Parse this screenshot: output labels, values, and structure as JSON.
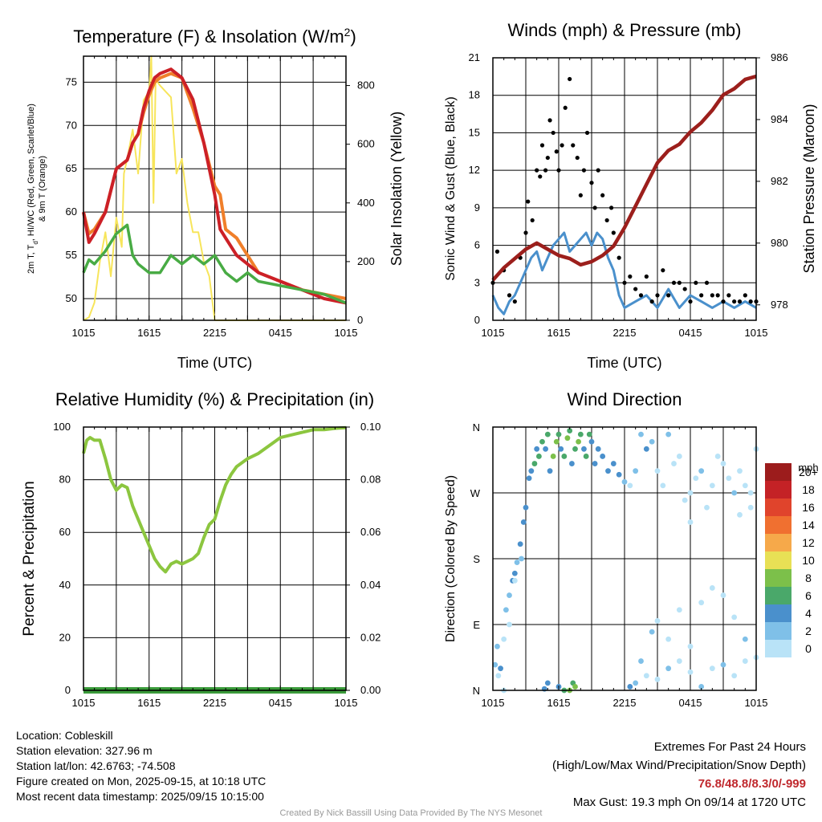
{
  "chart_data": [
    {
      "type": "line",
      "title": "Temperature (F) & Insolation (W/m",
      "title_sup": "2",
      "title_end": ")",
      "xlabel": "Time (UTC)",
      "ylabel_left": [
        "2m T, T",
        "d",
        ", HI/WC (Red, Green, Scarlet/Blue)",
        "& 9m T (Orange)"
      ],
      "ylabel_right": "Solar Insolation (Yellow)",
      "x_ticks": [
        "1015",
        "1615",
        "2215",
        "0415",
        "1015"
      ],
      "x_range_hours": [
        0,
        24
      ],
      "ylim_left": [
        47.5,
        78
      ],
      "yticks_left": [
        50,
        55,
        60,
        65,
        70,
        75
      ],
      "ylim_right": [
        0,
        900
      ],
      "yticks_right": [
        0,
        200,
        400,
        600,
        800
      ],
      "grid": true,
      "series": [
        {
          "color": "#f07f2a",
          "x": [
            0,
            0.5,
            1,
            2,
            3,
            4,
            4.5,
            5,
            5.5,
            6,
            6.5,
            7,
            8,
            9,
            10,
            11,
            12,
            12.5,
            13,
            14,
            15,
            16,
            18,
            20,
            22,
            24
          ],
          "y": [
            60,
            57.5,
            58,
            60,
            65,
            66,
            68,
            69,
            71.5,
            73.5,
            75,
            75.5,
            76,
            75.5,
            72,
            68,
            63,
            62,
            58,
            57,
            55,
            53,
            52,
            51,
            50.5,
            50
          ]
        },
        {
          "color": "#cc2027",
          "x": [
            0,
            0.5,
            1,
            2,
            3,
            4,
            4.5,
            5,
            5.5,
            6,
            6.5,
            7,
            8,
            9,
            10,
            11,
            12,
            12.5,
            13,
            14,
            15,
            16,
            18,
            20,
            22,
            24
          ],
          "y": [
            60,
            56.5,
            57.5,
            60,
            65,
            66,
            68,
            69,
            72,
            74,
            75.5,
            76,
            76.5,
            75.5,
            73,
            68,
            62,
            58,
            57,
            55,
            54,
            53,
            52,
            51,
            50,
            49.5
          ]
        },
        {
          "color": "#48ab44",
          "x": [
            0,
            0.5,
            1,
            2,
            3,
            3.5,
            4,
            4.5,
            5,
            6,
            7,
            8,
            9,
            10,
            11,
            12,
            13,
            14,
            15,
            16,
            18,
            20,
            22,
            24
          ],
          "y": [
            53,
            54.5,
            54,
            55.5,
            57.5,
            58,
            58.5,
            55,
            54,
            53,
            53,
            55,
            54,
            55,
            54,
            55,
            53,
            52,
            53,
            52,
            51.5,
            51,
            50.5,
            49.5
          ]
        }
      ],
      "insolation_series": {
        "color": "#f7e55b",
        "x": [
          0,
          0.5,
          1,
          1.5,
          2,
          2.5,
          3,
          3.5,
          3.7,
          4,
          4.5,
          5,
          5.5,
          6,
          6.2,
          6.4,
          6.6,
          7,
          7.5,
          8,
          8.5,
          9,
          9.5,
          10,
          10.5,
          11,
          11.5,
          12,
          24
        ],
        "y": [
          0,
          10,
          60,
          200,
          300,
          150,
          350,
          250,
          500,
          550,
          650,
          500,
          750,
          780,
          900,
          400,
          820,
          800,
          780,
          760,
          500,
          550,
          400,
          300,
          300,
          200,
          150,
          0,
          0
        ]
      }
    },
    {
      "type": "scatter",
      "title": "Winds (mph) & Pressure (mb)",
      "xlabel": "Time (UTC)",
      "ylabel_left": "Sonic Wind & Gust (Blue, Black)",
      "ylabel_right": "Station Pressure (Maroon)",
      "x_ticks": [
        "1015",
        "1615",
        "2215",
        "0415",
        "1015"
      ],
      "x_range_hours": [
        0,
        24
      ],
      "ylim_left": [
        0,
        21
      ],
      "yticks_left": [
        0,
        3,
        6,
        9,
        12,
        15,
        18,
        21
      ],
      "ylim_right": [
        977.5,
        986
      ],
      "yticks_right": [
        978,
        980,
        982,
        984,
        986
      ],
      "grid": true,
      "wind_series": {
        "color": "#4a90cc",
        "x": [
          0,
          0.5,
          1,
          1.5,
          2,
          2.5,
          3,
          3.5,
          4,
          4.5,
          5,
          5.5,
          6,
          6.5,
          7,
          7.5,
          8,
          8.5,
          9,
          9.5,
          10,
          10.5,
          11,
          11.5,
          12,
          13,
          14,
          15,
          16,
          17,
          18,
          19,
          20,
          21,
          22,
          23,
          24
        ],
        "y": [
          2,
          1,
          0.5,
          1.5,
          2,
          3,
          4,
          5,
          5.5,
          4,
          5,
          6,
          6.5,
          7,
          5.5,
          6,
          6.5,
          7,
          6,
          7,
          6.5,
          5,
          4,
          2,
          1,
          1.5,
          2,
          1,
          2.5,
          1,
          2,
          1.5,
          1,
          1.5,
          1,
          1.5,
          1
        ]
      },
      "gust_series": {
        "color": "#000000",
        "x": [
          0,
          0.4,
          1,
          1.5,
          2,
          2.5,
          3,
          3.2,
          3.6,
          4,
          4.3,
          4.5,
          4.8,
          5,
          5.2,
          5.5,
          5.8,
          6,
          6.3,
          6.6,
          7,
          7.3,
          7.7,
          8,
          8.3,
          8.6,
          9,
          9.3,
          9.6,
          10,
          10.4,
          10.8,
          11,
          11.5,
          12,
          12.5,
          13,
          13.5,
          14,
          14.5,
          15,
          15.5,
          16,
          16.5,
          17,
          17.5,
          18,
          18.5,
          19,
          19.5,
          20,
          20.5,
          21,
          21.5,
          22,
          22.5,
          23,
          23.5,
          24
        ],
        "y": [
          3,
          5.5,
          4,
          2,
          1.5,
          5,
          7,
          9.5,
          8,
          12,
          11.5,
          14,
          12,
          13,
          16,
          15,
          13.5,
          12,
          14,
          17,
          19.3,
          14,
          13,
          10,
          12,
          15,
          11,
          9,
          12,
          10,
          8,
          9,
          7,
          5,
          3,
          3.5,
          2.5,
          2,
          3.5,
          1.5,
          2,
          4,
          2,
          3,
          3,
          2.5,
          1.5,
          3,
          2,
          3,
          2,
          2,
          1.5,
          2,
          1.5,
          1.5,
          2,
          1.5,
          1.5
        ]
      },
      "pressure_series": {
        "color": "#9c1f1c",
        "x": [
          0,
          1,
          2,
          3,
          4,
          5,
          6,
          7,
          8,
          9,
          10,
          11,
          12,
          13,
          14,
          15,
          16,
          17,
          18,
          19,
          20,
          21,
          22,
          23,
          24
        ],
        "y": [
          978.8,
          979.2,
          979.5,
          979.8,
          980,
          979.8,
          979.6,
          979.5,
          979.3,
          979.4,
          979.6,
          979.9,
          980.5,
          981.2,
          981.9,
          982.6,
          983,
          983.2,
          983.6,
          983.9,
          984.3,
          984.8,
          985.0,
          985.3,
          985.4
        ]
      }
    },
    {
      "type": "line",
      "title": "Relative Humidity (%) & Precipitation (in)",
      "ylabel_left": "Percent & Precipitation",
      "x_ticks": [
        "1015",
        "1615",
        "2215",
        "0415",
        "1015"
      ],
      "x_range_hours": [
        0,
        24
      ],
      "ylim_left": [
        0,
        100
      ],
      "yticks_left": [
        0,
        20,
        40,
        60,
        80,
        100
      ],
      "ylim_right": [
        0,
        0.1
      ],
      "yticks_right": [
        "0.00",
        "0.02",
        "0.04",
        "0.06",
        "0.08",
        "0.10"
      ],
      "grid": true,
      "rh_series": {
        "color": "#8cc63f",
        "x": [
          0,
          0.3,
          0.6,
          1,
          1.5,
          2,
          2.5,
          3,
          3.5,
          4,
          4.5,
          5,
          5.5,
          6,
          6.5,
          7,
          7.5,
          8,
          8.5,
          9,
          9.5,
          10,
          10.5,
          11,
          11.5,
          12,
          12.5,
          13,
          13.5,
          14,
          15,
          16,
          17,
          18,
          19,
          20,
          21,
          22,
          23,
          24
        ],
        "y": [
          90,
          95,
          96,
          95,
          95,
          88,
          80,
          76,
          78,
          77,
          70,
          65,
          60,
          55,
          50,
          47,
          45,
          48,
          49,
          48,
          49,
          50,
          52,
          58,
          63,
          65,
          72,
          78,
          82,
          85,
          88,
          90,
          93,
          96,
          97,
          98,
          99,
          99,
          99.5,
          99.8
        ]
      },
      "precip_series": {
        "color": "#3a9a3a",
        "x": [
          0,
          24
        ],
        "y": [
          0,
          0
        ]
      }
    },
    {
      "type": "scatter",
      "title": "Wind Direction",
      "ylabel_left": "Direction (Colored By Speed)",
      "x_ticks": [
        "1015",
        "1615",
        "2215",
        "0415",
        "1015"
      ],
      "y_ticks": [
        "N",
        "E",
        "S",
        "W",
        "N"
      ],
      "x_range_hours": [
        0,
        24
      ],
      "ylim_degrees": [
        0,
        360
      ],
      "grid": true,
      "points": [
        [
          0.2,
          35,
          2
        ],
        [
          0.5,
          20,
          0
        ],
        [
          0.7,
          30,
          4
        ],
        [
          1,
          0,
          0
        ],
        [
          1,
          70,
          0
        ],
        [
          1.2,
          110,
          1
        ],
        [
          1.5,
          130,
          2
        ],
        [
          1.8,
          150,
          4
        ],
        [
          2,
          160,
          4
        ],
        [
          2.2,
          175,
          2
        ],
        [
          2.5,
          200,
          4
        ],
        [
          2.8,
          230,
          4
        ],
        [
          3,
          250,
          4
        ],
        [
          3.3,
          290,
          4
        ],
        [
          3.5,
          300,
          4
        ],
        [
          3.8,
          310,
          6
        ],
        [
          4,
          330,
          4
        ],
        [
          4.2,
          320,
          6
        ],
        [
          4.5,
          340,
          6
        ],
        [
          4.8,
          330,
          4
        ],
        [
          5,
          350,
          6
        ],
        [
          5.2,
          300,
          4
        ],
        [
          5.5,
          320,
          8
        ],
        [
          5.8,
          340,
          8
        ],
        [
          6,
          350,
          6
        ],
        [
          6.2,
          330,
          4
        ],
        [
          6.5,
          320,
          6
        ],
        [
          6.8,
          345,
          8
        ],
        [
          7,
          355,
          6
        ],
        [
          7.2,
          310,
          4
        ],
        [
          7.5,
          330,
          6
        ],
        [
          7.8,
          340,
          8
        ],
        [
          8,
          350,
          6
        ],
        [
          8.3,
          330,
          4
        ],
        [
          8.5,
          320,
          6
        ],
        [
          8.8,
          350,
          6
        ],
        [
          9,
          340,
          4
        ],
        [
          9.3,
          310,
          4
        ],
        [
          9.6,
          330,
          4
        ],
        [
          10,
          320,
          4
        ],
        [
          10.5,
          300,
          4
        ],
        [
          11,
          310,
          4
        ],
        [
          11.5,
          295,
          4
        ],
        [
          12,
          285,
          2
        ],
        [
          12.5,
          280,
          0
        ],
        [
          13,
          300,
          2
        ],
        [
          13.5,
          350,
          2
        ],
        [
          14,
          330,
          4
        ],
        [
          14.5,
          340,
          2
        ],
        [
          15,
          300,
          0
        ],
        [
          15.5,
          280,
          0
        ],
        [
          16,
          350,
          2
        ],
        [
          16.5,
          310,
          0
        ],
        [
          17,
          320,
          0
        ],
        [
          17.5,
          260,
          0
        ],
        [
          18,
          270,
          0
        ],
        [
          18.5,
          290,
          0
        ],
        [
          19,
          300,
          2
        ],
        [
          19.5,
          250,
          0
        ],
        [
          20,
          280,
          0
        ],
        [
          20.5,
          320,
          0
        ],
        [
          21,
          310,
          0
        ],
        [
          21.5,
          290,
          0
        ],
        [
          22,
          270,
          2
        ],
        [
          22.5,
          300,
          0
        ],
        [
          23,
          280,
          0
        ],
        [
          23.5,
          250,
          0
        ],
        [
          24,
          330,
          0
        ],
        [
          6,
          5,
          4
        ],
        [
          6.5,
          0,
          6
        ],
        [
          7,
          0,
          8
        ],
        [
          7.3,
          10,
          6
        ],
        [
          7.5,
          5,
          8
        ],
        [
          5,
          10,
          4
        ],
        [
          4.7,
          2,
          4
        ],
        [
          13,
          10,
          2
        ],
        [
          14,
          20,
          0
        ],
        [
          15,
          15,
          0
        ],
        [
          16,
          30,
          2
        ],
        [
          17,
          40,
          0
        ],
        [
          18,
          25,
          0
        ],
        [
          19,
          5,
          2
        ],
        [
          20,
          30,
          0
        ],
        [
          21,
          35,
          2
        ],
        [
          22,
          20,
          0
        ],
        [
          23,
          40,
          0
        ],
        [
          12.5,
          5,
          4
        ],
        [
          13.5,
          40,
          2
        ],
        [
          14.5,
          80,
          2
        ],
        [
          15,
          95,
          0
        ],
        [
          16,
          70,
          0
        ],
        [
          17,
          110,
          0
        ],
        [
          18,
          60,
          0
        ],
        [
          19,
          120,
          0
        ],
        [
          20,
          140,
          0
        ],
        [
          21,
          130,
          0
        ],
        [
          22,
          100,
          0
        ],
        [
          23,
          70,
          2
        ],
        [
          24,
          45,
          0
        ],
        [
          1.5,
          90,
          0
        ],
        [
          2,
          150,
          0
        ],
        [
          2.6,
          180,
          2
        ],
        [
          0.4,
          60,
          2
        ],
        [
          22.5,
          240,
          0
        ],
        [
          23.5,
          270,
          0
        ],
        [
          18,
          230,
          0
        ]
      ],
      "colorbar": {
        "label": "mph",
        "levels": [
          "0",
          "2",
          "4",
          "6",
          "8",
          "10",
          "12",
          "14",
          "16",
          "18",
          "20+"
        ],
        "colors": [
          "#b9e3f7",
          "#7fc0e8",
          "#4a90cc",
          "#4aa86a",
          "#7cc04a",
          "#e8e055",
          "#f6a94a",
          "#f07030",
          "#e0442c",
          "#c42226",
          "#9c1c1c"
        ]
      }
    }
  ],
  "info": {
    "location": "Location: Cobleskill",
    "elevation": "Station elevation: 327.96 m",
    "latlon": "Station lat/lon: 42.6763; -74.508",
    "created": "Figure created on Mon, 2025-09-15, at 10:18 UTC",
    "recent": "Most recent data timestamp: 2025/09/15 10:15:00"
  },
  "extremes": {
    "heading": "Extremes For Past 24 Hours",
    "subheading": "(High/Low/Max Wind/Precipitation/Snow Depth)",
    "values": "76.8/48.8/8.3/0/-999",
    "max_gust": "Max Gust: 19.3 mph On 09/14 at 1720 UTC"
  },
  "credit": "Created By Nick Bassill Using Data Provided By The NYS Mesonet"
}
